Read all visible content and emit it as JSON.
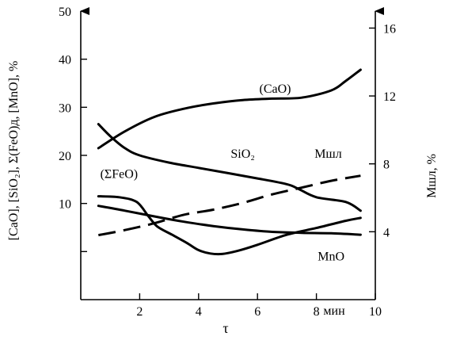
{
  "chart_data": {
    "type": "line",
    "xlabel": "τ",
    "x_unit": "мин",
    "xlim": [
      0,
      10
    ],
    "x_ticks": [
      2,
      4,
      6,
      8,
      10
    ],
    "ylabel_left": "[CaO], [SiO₂], Σ(FeO)д, [MnO], %",
    "ylim_left": [
      -10,
      50
    ],
    "y_ticks_left": [
      10,
      20,
      30,
      40,
      50
    ],
    "ylabel_right": "Mшл, %",
    "ylim_right": [
      0,
      17
    ],
    "y_ticks_right": [
      4,
      8,
      12,
      16
    ],
    "series": [
      {
        "name": "(CaO)",
        "axis": "left",
        "style": "solid",
        "x": [
          0.6,
          1.5,
          2.5,
          3.5,
          4.5,
          5.5,
          6.5,
          7.5,
          8.5,
          9.0,
          9.5
        ],
        "y": [
          21.5,
          25,
          28,
          29.7,
          30.8,
          31.5,
          31.8,
          32,
          33.5,
          35.5,
          37.8
        ]
      },
      {
        "name": "SiO₂",
        "axis": "left",
        "style": "solid",
        "x": [
          0.6,
          1.0,
          1.5,
          2.0,
          3.0,
          4.0,
          5.0,
          6.0,
          7.0,
          7.4,
          8.0,
          9.0,
          9.5
        ],
        "y": [
          26.5,
          24,
          21.5,
          20,
          18.5,
          17.4,
          16.3,
          15.2,
          14,
          13,
          11.3,
          10.3,
          8.5
        ]
      },
      {
        "name": "Mшл",
        "axis": "right",
        "style": "dashed",
        "x": [
          0.6,
          1.5,
          2.5,
          3.5,
          4.5,
          5.5,
          6.5,
          7.5,
          8.5,
          9.5
        ],
        "y": [
          3.8,
          4.1,
          4.5,
          5.0,
          5.3,
          5.7,
          6.2,
          6.6,
          7.0,
          7.3
        ]
      },
      {
        "name": "(ΣFeO)",
        "axis": "left",
        "style": "solid",
        "x": [
          0.6,
          1.3,
          1.9,
          2.3,
          2.6,
          3.1,
          3.6,
          4.0,
          4.4,
          4.8,
          5.3,
          6.0,
          7.0,
          8.0,
          9.0,
          9.5
        ],
        "y": [
          11.5,
          11.3,
          10.3,
          7.3,
          5.2,
          3.5,
          1.8,
          0.3,
          -0.4,
          -0.5,
          0.1,
          1.4,
          3.5,
          4.9,
          6.4,
          7.0
        ]
      },
      {
        "name": "MnO",
        "axis": "left",
        "style": "solid",
        "x": [
          0.6,
          1.5,
          2.5,
          3.5,
          4.5,
          5.5,
          6.5,
          7.5,
          8.5,
          9.5
        ],
        "y": [
          9.5,
          8.5,
          7.3,
          6.2,
          5.3,
          4.6,
          4.1,
          3.9,
          3.8,
          3.5
        ]
      }
    ],
    "annotations": [
      {
        "text": "(CaO)",
        "x": 6.6,
        "y": 33
      },
      {
        "text": "SiO₂",
        "x": 5.5,
        "y": 19.5
      },
      {
        "text": "Mшл",
        "x": 8.4,
        "y": 19.5
      },
      {
        "text": "(ΣFeO)",
        "x": 1.3,
        "y": 15.3
      },
      {
        "text": "MnO",
        "x": 8.5,
        "y": -1.8
      }
    ]
  }
}
